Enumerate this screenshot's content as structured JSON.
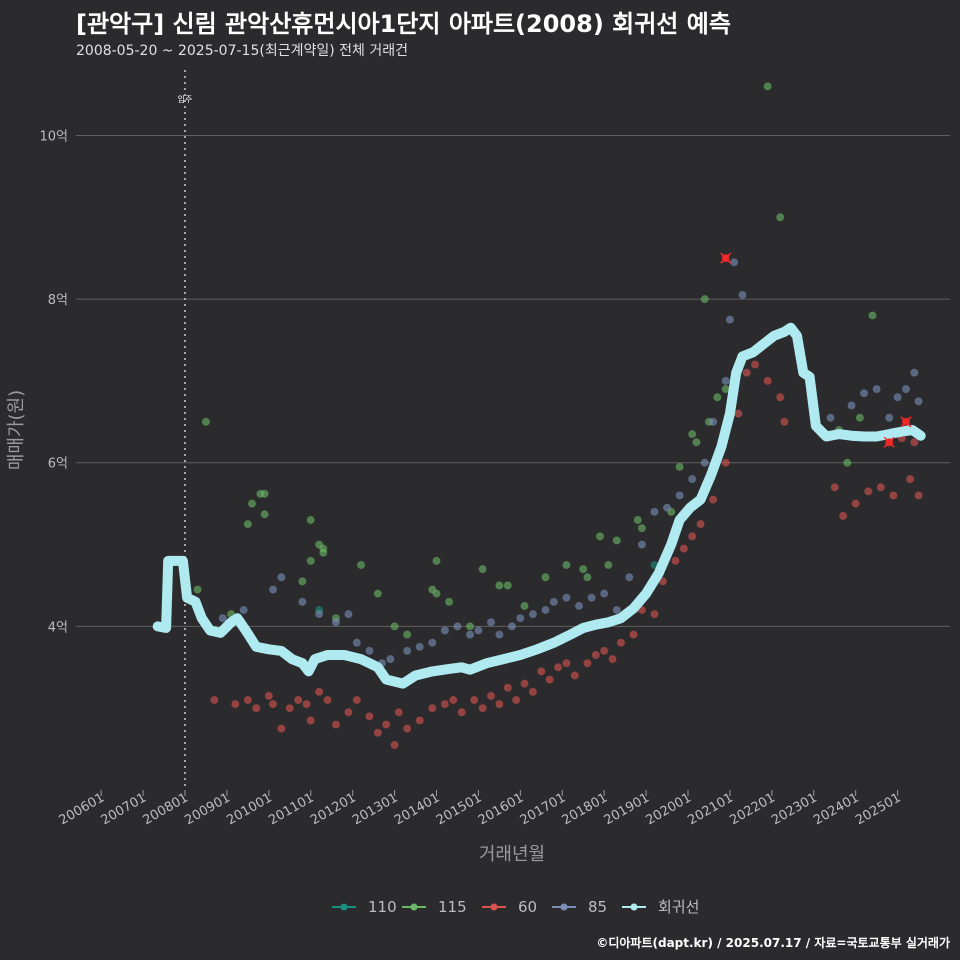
{
  "header": {
    "title": "[관악구] 신림 관악산휴먼시아1단지 아파트(2008) 회귀선 예측",
    "subtitle": "2008-05-20 ~ 2025-07-15(최근계약일) 전체 거래건"
  },
  "caption": "©디아파트(dapt.kr) / 2025.07.17 / 자료=국토교통부 실거래가",
  "colors": {
    "background": "#2b2b2d",
    "grid": "#5f5f5f",
    "s110": "#1a8f7f",
    "s115": "#6ab866",
    "s60": "#d9534f",
    "s85": "#7a8fb8",
    "regression": "#aeeaf0",
    "highlight": "#ff2a2a"
  },
  "chart_data": {
    "type": "scatter",
    "xlabel": "거래년월",
    "ylabel": "매매가(원)",
    "x_range": [
      2005.4,
      2026.25
    ],
    "ylim": [
      2.0,
      10.8
    ],
    "x_ticks": [
      "200601",
      "200701",
      "200801",
      "200901",
      "201001",
      "201101",
      "201201",
      "201301",
      "201401",
      "201501",
      "201601",
      "201701",
      "201801",
      "201901",
      "202001",
      "202101",
      "202201",
      "202301",
      "202401",
      "202501"
    ],
    "y_ticks": [
      {
        "value": 4,
        "label": "4억"
      },
      {
        "value": 6,
        "label": "6억"
      },
      {
        "value": 8,
        "label": "8억"
      },
      {
        "value": 10,
        "label": "10억"
      }
    ],
    "grid": true,
    "legend_position": "bottom",
    "annotation": {
      "x": 2008.0,
      "label": "입주"
    },
    "highlighted_points": [
      {
        "x": 2020.9,
        "y": 8.5
      },
      {
        "x": 2024.8,
        "y": 6.25
      },
      {
        "x": 2025.2,
        "y": 6.5
      }
    ],
    "series": [
      {
        "name": "110",
        "key": "s110",
        "points": [
          [
            2011.2,
            4.2
          ],
          [
            2019.2,
            4.75
          ]
        ]
      },
      {
        "name": "115",
        "key": "s115",
        "points": [
          [
            2008.5,
            6.5
          ],
          [
            2008.3,
            4.45
          ],
          [
            2009.1,
            4.15
          ],
          [
            2009.5,
            5.25
          ],
          [
            2009.6,
            5.5
          ],
          [
            2009.8,
            5.62
          ],
          [
            2009.9,
            5.62
          ],
          [
            2009.9,
            5.37
          ],
          [
            2010.8,
            4.55
          ],
          [
            2011.0,
            5.3
          ],
          [
            2011.0,
            4.8
          ],
          [
            2011.2,
            5.0
          ],
          [
            2011.3,
            4.95
          ],
          [
            2011.3,
            4.9
          ],
          [
            2011.6,
            4.1
          ],
          [
            2012.2,
            4.75
          ],
          [
            2012.6,
            4.4
          ],
          [
            2013.0,
            4.0
          ],
          [
            2013.3,
            3.9
          ],
          [
            2013.9,
            4.45
          ],
          [
            2014.0,
            4.8
          ],
          [
            2014.0,
            4.4
          ],
          [
            2014.3,
            4.3
          ],
          [
            2014.8,
            4.0
          ],
          [
            2015.1,
            4.7
          ],
          [
            2015.5,
            4.5
          ],
          [
            2015.7,
            4.5
          ],
          [
            2016.1,
            4.25
          ],
          [
            2016.6,
            4.6
          ],
          [
            2017.1,
            4.75
          ],
          [
            2017.5,
            4.7
          ],
          [
            2017.6,
            4.6
          ],
          [
            2017.9,
            5.1
          ],
          [
            2018.1,
            4.75
          ],
          [
            2018.3,
            5.05
          ],
          [
            2018.8,
            5.3
          ],
          [
            2018.9,
            5.2
          ],
          [
            2019.6,
            5.4
          ],
          [
            2019.8,
            5.95
          ],
          [
            2020.1,
            6.35
          ],
          [
            2020.2,
            6.25
          ],
          [
            2020.5,
            6.5
          ],
          [
            2020.7,
            6.8
          ],
          [
            2020.9,
            6.9
          ],
          [
            2021.2,
            7.2
          ],
          [
            2020.4,
            8.0
          ],
          [
            2021.9,
            10.6
          ],
          [
            2022.2,
            9.0
          ],
          [
            2023.3,
            6.35
          ],
          [
            2023.6,
            6.4
          ],
          [
            2023.8,
            6.0
          ],
          [
            2024.4,
            7.8
          ],
          [
            2024.1,
            6.55
          ]
        ]
      },
      {
        "name": "60",
        "key": "s60",
        "points": [
          [
            2008.7,
            3.1
          ],
          [
            2009.2,
            3.05
          ],
          [
            2009.5,
            3.1
          ],
          [
            2009.7,
            3.0
          ],
          [
            2010.0,
            3.15
          ],
          [
            2010.1,
            3.05
          ],
          [
            2010.3,
            2.75
          ],
          [
            2010.5,
            3.0
          ],
          [
            2010.7,
            3.1
          ],
          [
            2010.9,
            3.05
          ],
          [
            2011.0,
            2.85
          ],
          [
            2011.2,
            3.2
          ],
          [
            2011.4,
            3.1
          ],
          [
            2011.6,
            2.8
          ],
          [
            2011.9,
            2.95
          ],
          [
            2012.1,
            3.1
          ],
          [
            2012.4,
            2.9
          ],
          [
            2012.6,
            2.7
          ],
          [
            2012.8,
            2.8
          ],
          [
            2013.0,
            2.55
          ],
          [
            2013.1,
            2.95
          ],
          [
            2013.3,
            2.75
          ],
          [
            2013.6,
            2.85
          ],
          [
            2013.9,
            3.0
          ],
          [
            2014.2,
            3.05
          ],
          [
            2014.4,
            3.1
          ],
          [
            2014.6,
            2.95
          ],
          [
            2014.9,
            3.1
          ],
          [
            2015.1,
            3.0
          ],
          [
            2015.3,
            3.15
          ],
          [
            2015.5,
            3.05
          ],
          [
            2015.7,
            3.25
          ],
          [
            2015.9,
            3.1
          ],
          [
            2016.1,
            3.3
          ],
          [
            2016.3,
            3.2
          ],
          [
            2016.5,
            3.45
          ],
          [
            2016.7,
            3.35
          ],
          [
            2016.9,
            3.5
          ],
          [
            2017.1,
            3.55
          ],
          [
            2017.3,
            3.4
          ],
          [
            2017.6,
            3.55
          ],
          [
            2017.8,
            3.65
          ],
          [
            2018.0,
            3.7
          ],
          [
            2018.2,
            3.6
          ],
          [
            2018.4,
            3.8
          ],
          [
            2018.7,
            3.9
          ],
          [
            2018.9,
            4.2
          ],
          [
            2019.2,
            4.15
          ],
          [
            2019.4,
            4.55
          ],
          [
            2019.7,
            4.8
          ],
          [
            2019.9,
            4.95
          ],
          [
            2020.1,
            5.1
          ],
          [
            2020.3,
            5.25
          ],
          [
            2020.6,
            5.55
          ],
          [
            2020.9,
            6.0
          ],
          [
            2021.2,
            6.6
          ],
          [
            2021.4,
            7.1
          ],
          [
            2021.6,
            7.2
          ],
          [
            2021.9,
            7.0
          ],
          [
            2022.2,
            6.8
          ],
          [
            2022.3,
            6.5
          ],
          [
            2023.5,
            5.7
          ],
          [
            2023.7,
            5.35
          ],
          [
            2024.0,
            5.5
          ],
          [
            2024.3,
            5.65
          ],
          [
            2024.6,
            5.7
          ],
          [
            2024.9,
            5.6
          ],
          [
            2025.3,
            5.8
          ],
          [
            2025.5,
            5.6
          ],
          [
            2025.1,
            6.3
          ],
          [
            2025.4,
            6.25
          ]
        ]
      },
      {
        "name": "85",
        "key": "s85",
        "points": [
          [
            2008.9,
            4.1
          ],
          [
            2009.4,
            4.2
          ],
          [
            2010.1,
            4.45
          ],
          [
            2010.3,
            4.6
          ],
          [
            2010.8,
            4.3
          ],
          [
            2011.2,
            4.15
          ],
          [
            2011.6,
            4.05
          ],
          [
            2011.9,
            4.15
          ],
          [
            2012.1,
            3.8
          ],
          [
            2012.4,
            3.7
          ],
          [
            2012.7,
            3.55
          ],
          [
            2012.9,
            3.6
          ],
          [
            2013.3,
            3.7
          ],
          [
            2013.6,
            3.75
          ],
          [
            2013.9,
            3.8
          ],
          [
            2014.2,
            3.95
          ],
          [
            2014.5,
            4.0
          ],
          [
            2014.8,
            3.9
          ],
          [
            2015.0,
            3.95
          ],
          [
            2015.3,
            4.05
          ],
          [
            2015.5,
            3.9
          ],
          [
            2015.8,
            4.0
          ],
          [
            2016.0,
            4.1
          ],
          [
            2016.3,
            4.15
          ],
          [
            2016.6,
            4.2
          ],
          [
            2016.8,
            4.3
          ],
          [
            2017.1,
            4.35
          ],
          [
            2017.4,
            4.25
          ],
          [
            2017.7,
            4.35
          ],
          [
            2018.0,
            4.4
          ],
          [
            2018.3,
            4.2
          ],
          [
            2018.6,
            4.6
          ],
          [
            2018.9,
            5.0
          ],
          [
            2019.2,
            5.4
          ],
          [
            2019.5,
            5.45
          ],
          [
            2019.8,
            5.6
          ],
          [
            2020.1,
            5.8
          ],
          [
            2020.4,
            6.0
          ],
          [
            2020.6,
            6.5
          ],
          [
            2020.9,
            7.0
          ],
          [
            2021.0,
            7.75
          ],
          [
            2021.3,
            8.05
          ],
          [
            2021.1,
            8.45
          ],
          [
            2022.7,
            7.2
          ],
          [
            2023.4,
            6.55
          ],
          [
            2023.9,
            6.7
          ],
          [
            2024.2,
            6.85
          ],
          [
            2024.5,
            6.9
          ],
          [
            2024.8,
            6.55
          ],
          [
            2025.0,
            6.8
          ],
          [
            2025.2,
            6.9
          ],
          [
            2025.4,
            7.1
          ],
          [
            2025.5,
            6.75
          ]
        ]
      },
      {
        "name": "회귀선",
        "key": "regression",
        "line": [
          [
            2007.35,
            4.0
          ],
          [
            2007.55,
            3.98
          ],
          [
            2007.6,
            4.8
          ],
          [
            2007.95,
            4.8
          ],
          [
            2008.05,
            4.35
          ],
          [
            2008.25,
            4.3
          ],
          [
            2008.4,
            4.1
          ],
          [
            2008.6,
            3.95
          ],
          [
            2008.85,
            3.92
          ],
          [
            2009.1,
            4.05
          ],
          [
            2009.25,
            4.1
          ],
          [
            2009.45,
            3.95
          ],
          [
            2009.7,
            3.75
          ],
          [
            2010.0,
            3.72
          ],
          [
            2010.3,
            3.7
          ],
          [
            2010.55,
            3.6
          ],
          [
            2010.8,
            3.55
          ],
          [
            2010.95,
            3.45
          ],
          [
            2011.1,
            3.6
          ],
          [
            2011.4,
            3.65
          ],
          [
            2011.8,
            3.65
          ],
          [
            2012.2,
            3.6
          ],
          [
            2012.6,
            3.5
          ],
          [
            2012.8,
            3.35
          ],
          [
            2013.2,
            3.3
          ],
          [
            2013.5,
            3.4
          ],
          [
            2013.9,
            3.45
          ],
          [
            2014.3,
            3.48
          ],
          [
            2014.6,
            3.5
          ],
          [
            2014.8,
            3.47
          ],
          [
            2015.2,
            3.55
          ],
          [
            2015.6,
            3.6
          ],
          [
            2016.0,
            3.65
          ],
          [
            2016.4,
            3.72
          ],
          [
            2016.8,
            3.8
          ],
          [
            2017.2,
            3.9
          ],
          [
            2017.5,
            3.98
          ],
          [
            2017.8,
            4.02
          ],
          [
            2018.1,
            4.05
          ],
          [
            2018.4,
            4.1
          ],
          [
            2018.7,
            4.22
          ],
          [
            2019.0,
            4.4
          ],
          [
            2019.3,
            4.65
          ],
          [
            2019.6,
            5.0
          ],
          [
            2019.8,
            5.3
          ],
          [
            2020.05,
            5.45
          ],
          [
            2020.3,
            5.55
          ],
          [
            2020.55,
            5.85
          ],
          [
            2020.8,
            6.2
          ],
          [
            2021.0,
            6.6
          ],
          [
            2021.15,
            7.1
          ],
          [
            2021.3,
            7.3
          ],
          [
            2021.55,
            7.35
          ],
          [
            2021.8,
            7.45
          ],
          [
            2022.05,
            7.55
          ],
          [
            2022.3,
            7.6
          ],
          [
            2022.45,
            7.65
          ],
          [
            2022.6,
            7.55
          ],
          [
            2022.75,
            7.1
          ],
          [
            2022.9,
            7.05
          ],
          [
            2023.05,
            6.45
          ],
          [
            2023.3,
            6.32
          ],
          [
            2023.6,
            6.35
          ],
          [
            2023.9,
            6.33
          ],
          [
            2024.2,
            6.32
          ],
          [
            2024.5,
            6.32
          ],
          [
            2024.8,
            6.35
          ],
          [
            2025.1,
            6.38
          ],
          [
            2025.35,
            6.4
          ],
          [
            2025.55,
            6.33
          ]
        ]
      }
    ]
  }
}
